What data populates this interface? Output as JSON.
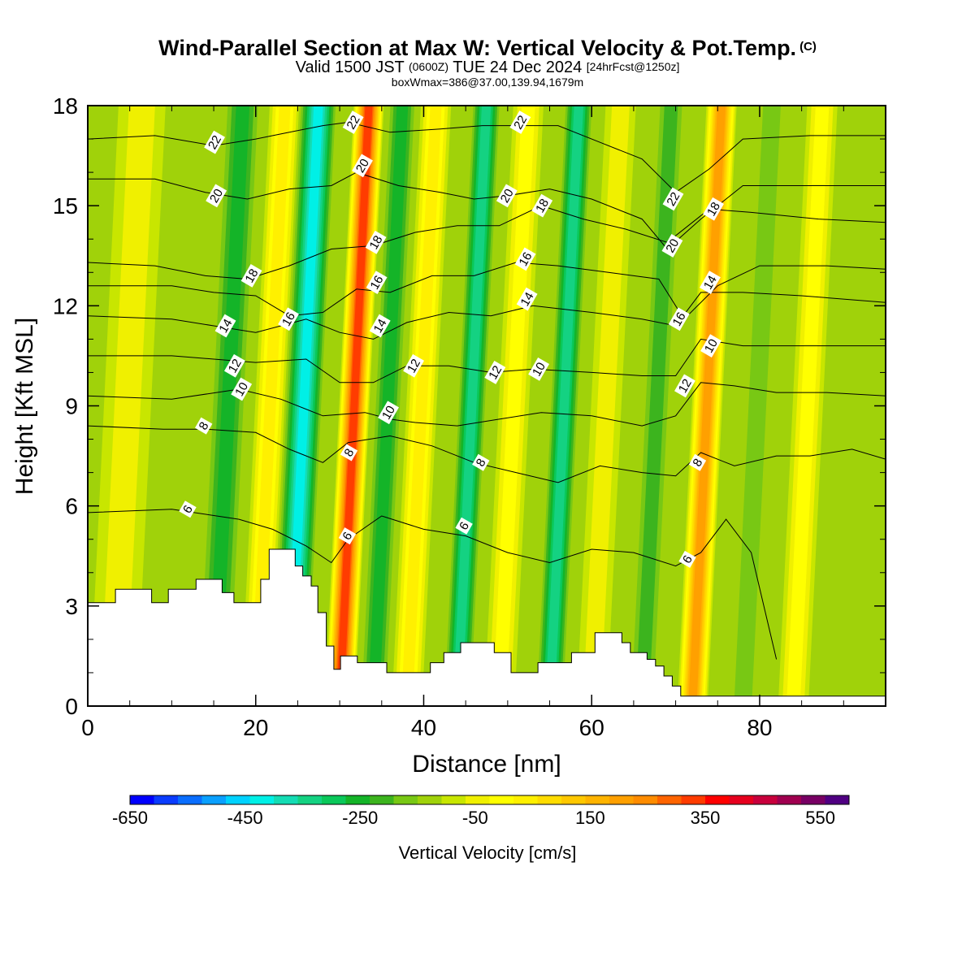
{
  "header": {
    "title_main": "Wind-Parallel Section at Max W: Vertical Velocity & Pot.Temp.",
    "title_copyright": "(C)",
    "subtitle_a": "Valid 1500 JST",
    "subtitle_b": "(0600Z)",
    "subtitle_c": "TUE 24 Dec 2024",
    "subtitle_d": "[24hrFcst@1250z]",
    "subtitle_box": "boxWmax=386@37.00,139.94,1679m"
  },
  "chart_data": {
    "type": "heatmap",
    "xlabel": "Distance [nm]",
    "ylabel": "Height [Kft MSL]",
    "xlim": [
      0,
      95
    ],
    "ylim": [
      0,
      18
    ],
    "xticks": [
      0,
      20,
      40,
      60,
      80
    ],
    "yticks": [
      0,
      3,
      6,
      9,
      12,
      15,
      18
    ],
    "colorbar": {
      "label": "Vertical Velocity [cm/s]",
      "ticks": [
        -650,
        -450,
        -250,
        -50,
        150,
        350,
        550
      ],
      "min": -650,
      "max": 600,
      "step": 50,
      "colors": [
        "#0000ff",
        "#0a3cff",
        "#0a6eff",
        "#0aa0ff",
        "#00d2ff",
        "#00f0e6",
        "#14dcb4",
        "#14d282",
        "#0ac85a",
        "#14b428",
        "#3cb41e",
        "#78c814",
        "#a0d20a",
        "#c8e600",
        "#f0f000",
        "#ffff00",
        "#fff000",
        "#ffdc00",
        "#ffc800",
        "#ffb400",
        "#ffa000",
        "#ff8c00",
        "#ff6400",
        "#ff3c00",
        "#ff0000",
        "#e6001e",
        "#c8003c",
        "#a00050",
        "#780064",
        "#500082"
      ]
    },
    "vertical_velocity_bands": [
      {
        "x": 3,
        "w_cm_s": 100,
        "width": 5
      },
      {
        "x": 15,
        "w_cm_s": -180,
        "width": 4
      },
      {
        "x": 20,
        "w_cm_s": 180,
        "width": 3
      },
      {
        "x": 24,
        "w_cm_s": -380,
        "width": 4
      },
      {
        "x": 30,
        "w_cm_s": 560,
        "width": 3
      },
      {
        "x": 34,
        "w_cm_s": -200,
        "width": 3
      },
      {
        "x": 38,
        "w_cm_s": 200,
        "width": 3
      },
      {
        "x": 44,
        "w_cm_s": -280,
        "width": 3
      },
      {
        "x": 49,
        "w_cm_s": 150,
        "width": 3
      },
      {
        "x": 55,
        "w_cm_s": -280,
        "width": 3
      },
      {
        "x": 60,
        "w_cm_s": 120,
        "width": 3
      },
      {
        "x": 66,
        "w_cm_s": -150,
        "width": 3
      },
      {
        "x": 72,
        "w_cm_s": 380,
        "width": 3
      },
      {
        "x": 78,
        "w_cm_s": -100,
        "width": 3
      },
      {
        "x": 84,
        "w_cm_s": 150,
        "width": 3
      },
      {
        "x": 89,
        "w_cm_s": -60,
        "width": 3
      }
    ],
    "terrain": [
      [
        0,
        3.1
      ],
      [
        3.3,
        3.1
      ],
      [
        3.3,
        3.5
      ],
      [
        7.6,
        3.5
      ],
      [
        7.6,
        3.1
      ],
      [
        9.6,
        3.1
      ],
      [
        9.6,
        3.5
      ],
      [
        12.9,
        3.5
      ],
      [
        12.9,
        3.8
      ],
      [
        16,
        3.8
      ],
      [
        16,
        3.4
      ],
      [
        17.4,
        3.4
      ],
      [
        17.4,
        3.1
      ],
      [
        20.6,
        3.1
      ],
      [
        20.6,
        3.8
      ],
      [
        21.6,
        3.8
      ],
      [
        21.6,
        4.7
      ],
      [
        24.7,
        4.7
      ],
      [
        24.7,
        4.2
      ],
      [
        25.6,
        4.2
      ],
      [
        25.6,
        3.9
      ],
      [
        26.6,
        3.9
      ],
      [
        26.6,
        3.6
      ],
      [
        27.4,
        3.6
      ],
      [
        27.4,
        2.8
      ],
      [
        28.4,
        2.8
      ],
      [
        28.4,
        1.8
      ],
      [
        29.3,
        1.8
      ],
      [
        29.3,
        1.1
      ],
      [
        30.1,
        1.1
      ],
      [
        30.1,
        1.5
      ],
      [
        32.1,
        1.5
      ],
      [
        32.1,
        1.3
      ],
      [
        35.6,
        1.3
      ],
      [
        35.6,
        1.0
      ],
      [
        40.8,
        1.0
      ],
      [
        40.8,
        1.3
      ],
      [
        42.4,
        1.3
      ],
      [
        42.4,
        1.6
      ],
      [
        44.4,
        1.6
      ],
      [
        44.4,
        1.9
      ],
      [
        48.4,
        1.9
      ],
      [
        48.4,
        1.6
      ],
      [
        50.4,
        1.6
      ],
      [
        50.4,
        1.0
      ],
      [
        53.6,
        1.0
      ],
      [
        53.6,
        1.3
      ],
      [
        57.6,
        1.3
      ],
      [
        57.6,
        1.6
      ],
      [
        60.4,
        1.6
      ],
      [
        60.4,
        2.2
      ],
      [
        63.6,
        2.2
      ],
      [
        63.6,
        1.9
      ],
      [
        64.6,
        1.9
      ],
      [
        64.6,
        1.6
      ],
      [
        66.6,
        1.6
      ],
      [
        66.6,
        1.4
      ],
      [
        67.6,
        1.4
      ],
      [
        67.6,
        1.2
      ],
      [
        68.6,
        1.2
      ],
      [
        68.6,
        0.9
      ],
      [
        69.6,
        0.9
      ],
      [
        69.6,
        0.6
      ],
      [
        70.6,
        0.6
      ],
      [
        70.6,
        0.3
      ],
      [
        95,
        0.3
      ]
    ],
    "theta_contours": [
      {
        "label": "6",
        "points": [
          [
            0,
            5.8
          ],
          [
            10,
            5.9
          ],
          [
            18,
            5.6
          ],
          [
            22,
            5.3
          ],
          [
            26,
            4.8
          ],
          [
            29,
            4.3
          ],
          [
            31,
            5.0
          ],
          [
            35,
            5.7
          ],
          [
            40,
            5.3
          ],
          [
            45,
            5.1
          ],
          [
            50,
            4.6
          ],
          [
            55,
            4.3
          ],
          [
            60,
            4.7
          ],
          [
            65,
            4.6
          ],
          [
            70,
            4.2
          ],
          [
            73,
            4.6
          ],
          [
            76,
            5.6
          ],
          [
            79,
            4.6
          ],
          [
            82,
            1.4
          ]
        ],
        "labels_at": [
          [
            11.9,
            5.9
          ],
          [
            30.9,
            5.1
          ],
          [
            44.8,
            5.4
          ],
          [
            71.4,
            4.4
          ]
        ]
      },
      {
        "label": "8",
        "points": [
          [
            0,
            8.4
          ],
          [
            9,
            8.3
          ],
          [
            14,
            8.3
          ],
          [
            20,
            8.2
          ],
          [
            24,
            7.7
          ],
          [
            28,
            7.3
          ],
          [
            31,
            7.9
          ],
          [
            36,
            8.1
          ],
          [
            41,
            7.8
          ],
          [
            46,
            7.3
          ],
          [
            51,
            7.0
          ],
          [
            56,
            6.7
          ],
          [
            61,
            7.2
          ],
          [
            66,
            7.0
          ],
          [
            70,
            6.9
          ],
          [
            73,
            7.6
          ],
          [
            77,
            7.2
          ],
          [
            82,
            7.5
          ],
          [
            86,
            7.5
          ],
          [
            91,
            7.7
          ],
          [
            95,
            7.4
          ]
        ],
        "labels_at": [
          [
            13.8,
            8.4
          ],
          [
            31.1,
            7.6
          ],
          [
            46.8,
            7.3
          ],
          [
            72.6,
            7.3
          ]
        ]
      },
      {
        "label": "10",
        "points": [
          [
            0,
            9.3
          ],
          [
            10,
            9.2
          ],
          [
            18,
            9.5
          ],
          [
            23,
            9.2
          ],
          [
            28,
            8.7
          ],
          [
            33,
            8.8
          ],
          [
            36,
            8.6
          ],
          [
            39,
            8.5
          ],
          [
            44,
            8.4
          ],
          [
            49,
            8.6
          ],
          [
            54,
            8.8
          ],
          [
            60,
            8.7
          ],
          [
            66,
            8.4
          ],
          [
            70,
            8.7
          ],
          [
            73,
            9.7
          ],
          [
            77,
            9.6
          ],
          [
            82,
            9.4
          ],
          [
            88,
            9.4
          ],
          [
            95,
            9.3
          ]
        ],
        "labels_at": [
          [
            18.3,
            9.5
          ],
          [
            35.8,
            8.8
          ],
          [
            53.7,
            10.1
          ],
          [
            74.2,
            10.8
          ]
        ]
      },
      {
        "label": "12",
        "points": [
          [
            0,
            10.5
          ],
          [
            10,
            10.5
          ],
          [
            15,
            10.4
          ],
          [
            20,
            10.3
          ],
          [
            26,
            10.4
          ],
          [
            30,
            9.7
          ],
          [
            34,
            9.7
          ],
          [
            38,
            10.2
          ],
          [
            43,
            10.2
          ],
          [
            48,
            10.0
          ],
          [
            53,
            10.1
          ],
          [
            60,
            10.0
          ],
          [
            66,
            9.9
          ],
          [
            70,
            9.9
          ],
          [
            73,
            11.0
          ],
          [
            78,
            10.8
          ],
          [
            85,
            10.8
          ],
          [
            95,
            10.8
          ]
        ],
        "labels_at": [
          [
            17.5,
            10.2
          ],
          [
            38.8,
            10.2
          ],
          [
            48.5,
            10.0
          ],
          [
            71.1,
            9.6
          ]
        ]
      },
      {
        "label": "14",
        "points": [
          [
            0,
            11.7
          ],
          [
            10,
            11.6
          ],
          [
            15,
            11.4
          ],
          [
            20,
            11.2
          ],
          [
            26,
            11.6
          ],
          [
            30,
            11.2
          ],
          [
            34,
            11.0
          ],
          [
            38,
            11.5
          ],
          [
            43,
            11.8
          ],
          [
            48,
            11.7
          ],
          [
            53,
            12.0
          ],
          [
            60,
            11.8
          ],
          [
            66,
            11.6
          ],
          [
            70,
            11.4
          ],
          [
            73,
            12.4
          ],
          [
            78,
            12.4
          ],
          [
            85,
            12.3
          ],
          [
            95,
            12.1
          ]
        ],
        "labels_at": [
          [
            16.4,
            11.4
          ],
          [
            34.8,
            11.4
          ],
          [
            52.3,
            12.2
          ],
          [
            74.1,
            12.7
          ]
        ]
      },
      {
        "label": "16",
        "points": [
          [
            0,
            12.6
          ],
          [
            10,
            12.6
          ],
          [
            15,
            12.4
          ],
          [
            20,
            12.3
          ],
          [
            24,
            11.7
          ],
          [
            28,
            11.8
          ],
          [
            32,
            12.5
          ],
          [
            36,
            12.4
          ],
          [
            41,
            12.9
          ],
          [
            46,
            12.9
          ],
          [
            51,
            13.3
          ],
          [
            56,
            13.2
          ],
          [
            62,
            13.0
          ],
          [
            68,
            12.8
          ],
          [
            71,
            11.6
          ],
          [
            75,
            12.6
          ],
          [
            80,
            13.2
          ],
          [
            88,
            13.2
          ],
          [
            95,
            13.1
          ]
        ],
        "labels_at": [
          [
            23.9,
            11.6
          ],
          [
            34.4,
            12.7
          ],
          [
            52.1,
            13.4
          ],
          [
            70.4,
            11.6
          ]
        ]
      },
      {
        "label": "18",
        "points": [
          [
            0,
            13.3
          ],
          [
            8,
            13.2
          ],
          [
            14,
            12.9
          ],
          [
            19,
            12.8
          ],
          [
            24,
            13.2
          ],
          [
            29,
            13.7
          ],
          [
            34,
            13.8
          ],
          [
            39,
            14.2
          ],
          [
            44,
            14.4
          ],
          [
            49,
            14.4
          ],
          [
            54,
            15.0
          ],
          [
            59,
            14.6
          ],
          [
            64,
            14.3
          ],
          [
            69,
            13.9
          ],
          [
            74,
            14.9
          ],
          [
            79,
            14.8
          ],
          [
            87,
            14.6
          ],
          [
            95,
            14.5
          ]
        ],
        "labels_at": [
          [
            19.5,
            12.9
          ],
          [
            34.3,
            13.9
          ],
          [
            54.1,
            15.0
          ],
          [
            74.5,
            14.9
          ]
        ]
      },
      {
        "label": "20",
        "points": [
          [
            0,
            15.8
          ],
          [
            8,
            15.8
          ],
          [
            14,
            15.4
          ],
          [
            19,
            15.2
          ],
          [
            24,
            15.5
          ],
          [
            29,
            15.6
          ],
          [
            32,
            16.0
          ],
          [
            37,
            15.6
          ],
          [
            42,
            15.4
          ],
          [
            46,
            15.2
          ],
          [
            50,
            15.3
          ],
          [
            55,
            15.5
          ],
          [
            60,
            15.2
          ],
          [
            66,
            14.6
          ],
          [
            69,
            13.7
          ],
          [
            73,
            14.6
          ],
          [
            78,
            15.6
          ],
          [
            86,
            15.6
          ],
          [
            95,
            15.6
          ]
        ],
        "labels_at": [
          [
            15.3,
            15.3
          ],
          [
            32.7,
            16.2
          ],
          [
            49.9,
            15.3
          ],
          [
            69.6,
            13.8
          ]
        ]
      },
      {
        "label": "22",
        "points": [
          [
            0,
            17.0
          ],
          [
            8,
            17.1
          ],
          [
            15,
            16.8
          ],
          [
            20,
            17.0
          ],
          [
            24,
            17.2
          ],
          [
            28,
            17.4
          ],
          [
            31,
            17.5
          ],
          [
            36,
            17.2
          ],
          [
            42,
            17.3
          ],
          [
            47,
            17.4
          ],
          [
            51,
            17.4
          ],
          [
            56,
            17.4
          ],
          [
            61,
            16.9
          ],
          [
            66,
            16.4
          ],
          [
            70,
            15.4
          ],
          [
            74,
            16.1
          ],
          [
            78,
            17.0
          ],
          [
            86,
            17.1
          ],
          [
            95,
            17.1
          ]
        ],
        "labels_at": [
          [
            15.1,
            16.9
          ],
          [
            31.6,
            17.5
          ],
          [
            51.5,
            17.5
          ],
          [
            69.7,
            15.2
          ]
        ]
      }
    ]
  }
}
